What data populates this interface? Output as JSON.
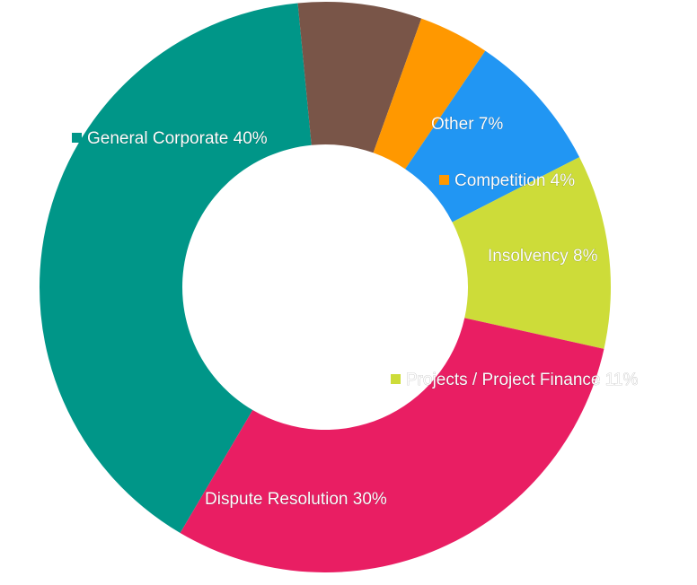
{
  "chart_data": {
    "type": "pie",
    "donut": true,
    "series": [
      {
        "values": [
          {
            "label": "General Corporate",
            "value": 40,
            "percent_label": "40%",
            "color": "#009688"
          },
          {
            "label": "Other",
            "value": 7,
            "percent_label": "7%",
            "color": "#795548"
          },
          {
            "label": "Competition",
            "value": 4,
            "percent_label": "4%",
            "color": "#FF9800"
          },
          {
            "label": "Insolvency",
            "value": 8,
            "percent_label": "8%",
            "color": "#2196F3"
          },
          {
            "label": "Projects / Project Finance",
            "value": 11,
            "percent_label": "11%",
            "color": "#CDDC39"
          },
          {
            "label": "Dispute Resolution",
            "value": 30,
            "percent_label": "30%",
            "color": "#E91E63"
          }
        ]
      }
    ],
    "legend": "inline"
  }
}
